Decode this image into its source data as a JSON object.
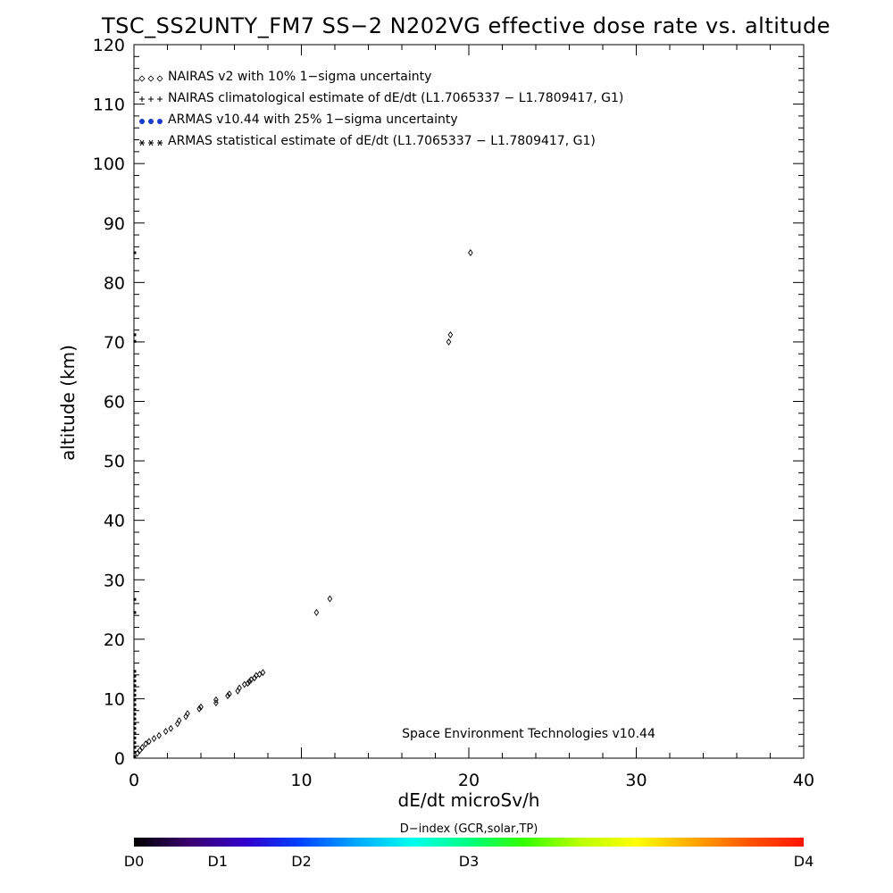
{
  "chart_data": {
    "type": "scatter",
    "title": "TSC_SS2UNTY_FM7 SS−2 N202VG effective dose rate vs. altitude",
    "xlabel": "dE/dt microSv/h",
    "ylabel": "altitude (km)",
    "xlim": [
      0,
      40
    ],
    "ylim": [
      0,
      120
    ],
    "x_ticks": [
      "0",
      "10",
      "20",
      "30",
      "40"
    ],
    "y_ticks": [
      "0",
      "10",
      "20",
      "30",
      "40",
      "50",
      "60",
      "70",
      "80",
      "90",
      "100",
      "110",
      "120"
    ],
    "legend": {
      "placement": "top-left",
      "entries": [
        {
          "symbol": "◇◇◇",
          "label": "NAIRAS v2 with 10% 1−sigma uncertainty"
        },
        {
          "symbol": "+++",
          "label": "NAIRAS climatological estimate of dE/dt (L1.7065337 − L1.7809417, G1)"
        },
        {
          "symbol": "●●●",
          "label": "ARMAS v10.44 with 25% 1−sigma uncertainty",
          "color": "#1a3ccc"
        },
        {
          "symbol": "***",
          "label": "ARMAS statistical estimate of dE/dt (L1.7065337 − L1.7809417, G1)"
        }
      ]
    },
    "series": [
      {
        "name": "NAIRAS v2 with 10% 1−sigma uncertainty",
        "marker": "diamond",
        "points": [
          [
            0.2,
            0.8
          ],
          [
            0.35,
            1.3
          ],
          [
            0.5,
            1.8
          ],
          [
            0.7,
            2.4
          ],
          [
            0.9,
            2.8
          ],
          [
            1.2,
            3.3
          ],
          [
            1.5,
            3.8
          ],
          [
            1.9,
            4.5
          ],
          [
            2.2,
            5.0
          ],
          [
            2.6,
            5.8
          ],
          [
            2.7,
            6.3
          ],
          [
            3.1,
            7.0
          ],
          [
            3.2,
            7.5
          ],
          [
            3.9,
            8.3
          ],
          [
            4.0,
            8.6
          ],
          [
            4.9,
            9.3
          ],
          [
            4.9,
            9.8
          ],
          [
            5.6,
            10.5
          ],
          [
            5.7,
            10.8
          ],
          [
            6.2,
            11.3
          ],
          [
            6.3,
            11.8
          ],
          [
            6.6,
            12.4
          ],
          [
            6.8,
            12.6
          ],
          [
            6.9,
            12.9
          ],
          [
            7.0,
            13.2
          ],
          [
            7.2,
            13.5
          ],
          [
            7.3,
            13.9
          ],
          [
            7.5,
            14.1
          ],
          [
            7.7,
            14.4
          ],
          [
            10.9,
            24.5
          ],
          [
            11.7,
            26.8
          ],
          [
            18.8,
            70.0
          ],
          [
            18.9,
            71.2
          ],
          [
            20.1,
            85.0
          ]
        ]
      },
      {
        "name": "ARMAS statistical estimate of dE/dt (L1.7065337 − L1.7809417, G1)",
        "marker": "dot",
        "points": [
          [
            0.05,
            0.3
          ],
          [
            0.05,
            1.0
          ],
          [
            0.05,
            1.8
          ],
          [
            0.05,
            2.6
          ],
          [
            0.05,
            3.4
          ],
          [
            0.05,
            4.2
          ],
          [
            0.05,
            5.0
          ],
          [
            0.05,
            5.8
          ],
          [
            0.05,
            6.6
          ],
          [
            0.05,
            7.4
          ],
          [
            0.05,
            8.2
          ],
          [
            0.05,
            9.0
          ],
          [
            0.05,
            9.8
          ],
          [
            0.05,
            10.6
          ],
          [
            0.05,
            11.4
          ],
          [
            0.05,
            12.2
          ],
          [
            0.05,
            13.0
          ],
          [
            0.05,
            13.8
          ],
          [
            0.05,
            14.6
          ],
          [
            0.05,
            24.5
          ],
          [
            0.05,
            26.7
          ],
          [
            0.05,
            70.1
          ],
          [
            0.05,
            71.2
          ],
          [
            0.05,
            85.0
          ]
        ]
      }
    ],
    "colorbar": {
      "label": "D−index (GCR,solar,TP)",
      "ticks": [
        {
          "label": "D0",
          "pos": 0.0
        },
        {
          "label": "D1",
          "pos": 0.125
        },
        {
          "label": "D2",
          "pos": 0.25
        },
        {
          "label": "D3",
          "pos": 0.5
        },
        {
          "label": "D4",
          "pos": 1.0
        }
      ],
      "colors": [
        "#000000",
        "#3a0070",
        "#3300cc",
        "#0044ff",
        "#00aaff",
        "#00ffee",
        "#00ff80",
        "#33ff00",
        "#bbff00",
        "#ffff00",
        "#ffaa00",
        "#ff5500",
        "#ff1500"
      ]
    },
    "annotation": "Space Environment Technologies v10.44"
  }
}
